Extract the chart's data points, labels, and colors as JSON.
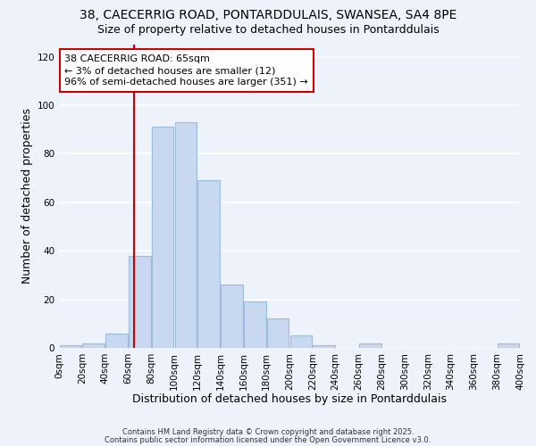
{
  "title1": "38, CAECERRIG ROAD, PONTARDDULAIS, SWANSEA, SA4 8PE",
  "title2": "Size of property relative to detached houses in Pontarddulais",
  "xlabel": "Distribution of detached houses by size in Pontarddulais",
  "ylabel": "Number of detached properties",
  "bin_edges": [
    0,
    20,
    40,
    60,
    80,
    100,
    120,
    140,
    160,
    180,
    200,
    220,
    240,
    260,
    280,
    300,
    320,
    340,
    360,
    380,
    400
  ],
  "counts": [
    1,
    2,
    6,
    38,
    91,
    93,
    69,
    26,
    19,
    12,
    5,
    1,
    0,
    2,
    0,
    0,
    0,
    0,
    0,
    2
  ],
  "bar_color": "#c8d8f0",
  "bar_edge_color": "#9abcd8",
  "vline_x": 65,
  "vline_color": "#cc0000",
  "annotation_line1": "38 CAECERRIG ROAD: 65sqm",
  "annotation_line2": "← 3% of detached houses are smaller (12)",
  "annotation_line3": "96% of semi-detached houses are larger (351) →",
  "annotation_box_color": "#ffffff",
  "annotation_box_edge": "#cc0000",
  "ylim": [
    0,
    125
  ],
  "yticks": [
    0,
    20,
    40,
    60,
    80,
    100,
    120
  ],
  "footer1": "Contains HM Land Registry data © Crown copyright and database right 2025.",
  "footer2": "Contains public sector information licensed under the Open Government Licence v3.0.",
  "bg_color": "#eef2fb",
  "grid_color": "#ffffff",
  "title_fontsize": 10,
  "subtitle_fontsize": 9,
  "axis_label_fontsize": 9,
  "tick_fontsize": 7.5,
  "annot_fontsize": 8
}
